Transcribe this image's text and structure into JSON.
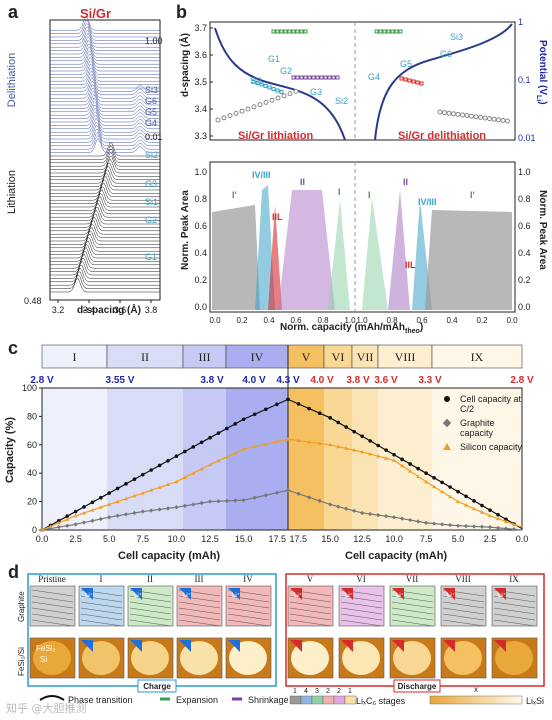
{
  "panel_a": {
    "letter": "a",
    "title": "Si/Gr",
    "side_top": "Delithiation",
    "side_bottom": "Lithiation",
    "labels_right": [
      {
        "text": "1.00",
        "color": "#222"
      },
      {
        "text": "Si3",
        "color": "#4a5ba8"
      },
      {
        "text": "G6",
        "color": "#4a5ba8"
      },
      {
        "text": "G5",
        "color": "#4a5ba8"
      },
      {
        "text": "G4",
        "color": "#4a5ba8"
      },
      {
        "text": "0.01",
        "color": "#222"
      },
      {
        "text": "Si2",
        "color": "#3aa3c8"
      },
      {
        "text": "G3",
        "color": "#3aa3c8"
      },
      {
        "text": "Si1",
        "color": "#3aa3c8"
      },
      {
        "text": "G2",
        "color": "#3aa3c8"
      },
      {
        "text": "G1",
        "color": "#3aa3c8"
      },
      {
        "text": "0.48",
        "color": "#222"
      }
    ],
    "xticks": [
      "3.2",
      "3.4",
      "3.6",
      "3.8"
    ],
    "xlabel": "d-spacing (Å)"
  },
  "panel_b": {
    "letter": "b",
    "top_left_ylabel": "d-spacing (Å)",
    "top_right_ylabel": "Potential (V",
    "top_right_ylabel_sub": "Li",
    "top_right_ylabel_end": ")",
    "yticks_left": [
      "3.7",
      "3.6",
      "3.5",
      "3.4",
      "3.3"
    ],
    "yticks_right": [
      "1",
      "0.1",
      "0.01"
    ],
    "lith_title": "Si/Gr lithiation",
    "delith_title": "Si/Gr delithiation",
    "top_annotations": [
      "G1",
      "G2",
      "Si1",
      "G3",
      "Si2",
      "G4",
      "G5",
      "G6",
      "Si3"
    ],
    "bottom_ylabel": "Norm. Peak Area",
    "bottom_yticks": [
      "1.0",
      "0.8",
      "0.6",
      "0.4",
      "0.2",
      "0.0"
    ],
    "bottom_annotations_left": [
      "I'",
      "IV/III",
      "IIL",
      "II",
      "I"
    ],
    "bottom_annotations_right": [
      "I",
      "II",
      "IV/III",
      "IIL",
      "I'"
    ],
    "xticks_left": [
      "0.0",
      "0.2",
      "0.4",
      "0.6",
      "0.8",
      "1.0"
    ],
    "xticks_right": [
      "1.0",
      "0.8",
      "0.6",
      "0.4",
      "0.2",
      "0.0"
    ],
    "xlabel": "Norm. capacity (mAh/mAh",
    "xlabel_sub": "theo",
    "xlabel_end": ")"
  },
  "panel_c": {
    "letter": "c",
    "stages": [
      "I",
      "II",
      "III",
      "IV",
      "V",
      "VI",
      "VII",
      "VIII",
      "IX"
    ],
    "voltages_charge": [
      "2.8 V",
      "3.55 V",
      "3.8 V",
      "4.0 V",
      "4.3 V"
    ],
    "voltages_discharge": [
      "4.0 V",
      "3.8 V",
      "3.6 V",
      "3.3 V",
      "2.8 V"
    ],
    "ylabel": "Capacity (%)",
    "xlabel": "Cell capacity (mAh)",
    "legend": [
      "Cell capacity at C/2",
      "Graphite capacity",
      "Silicon capacity"
    ],
    "colors": {
      "charge": "#1f2aa8",
      "discharge": "#d62b2b",
      "cell": "#111111",
      "graphite": "#777777",
      "silicon": "#f0a020"
    }
  },
  "chart_data": {
    "type": "line",
    "title": "",
    "xlabel": "Cell capacity (mAh)",
    "ylabel": "Capacity (%)",
    "ylim": [
      0,
      100
    ],
    "xticks_charge": [
      "0.0",
      "2.5",
      "5.0",
      "7.5",
      "10.0",
      "12.5",
      "15.0",
      "17.5"
    ],
    "xticks_discharge": [
      "17.5",
      "15.0",
      "12.5",
      "10.0",
      "7.5",
      "5.0",
      "2.5",
      "0.0"
    ],
    "yticks": [
      "0",
      "20",
      "40",
      "60",
      "80",
      "100"
    ],
    "x": [
      0,
      2.5,
      5.0,
      7.5,
      10.0,
      12.5,
      15.0,
      18.3,
      21.6,
      24.1,
      26.6,
      29.1,
      31.6,
      34.1,
      36.6
    ],
    "series": [
      {
        "name": "Cell capacity at C/2",
        "values": [
          0,
          13,
          26,
          39,
          52,
          65,
          78,
          92,
          79,
          66,
          53,
          40,
          27,
          14,
          1
        ]
      },
      {
        "name": "Graphite capacity",
        "values": [
          0,
          4,
          9,
          13,
          16,
          20,
          21,
          28,
          18,
          12,
          9,
          5,
          3,
          2,
          0
        ]
      },
      {
        "name": "Silicon capacity",
        "values": [
          0,
          10,
          18,
          26,
          34,
          46,
          57,
          64,
          60,
          55,
          49,
          34,
          20,
          10,
          2
        ]
      }
    ],
    "grid": false,
    "legend_position": "top-right"
  },
  "panel_d": {
    "letter": "d",
    "row_labels": [
      "Graphite",
      "FeSi₂/Si"
    ],
    "stages": [
      "Pristine",
      "I",
      "II",
      "III",
      "IV",
      "V",
      "VI",
      "VII",
      "VIII",
      "IX"
    ],
    "ion": "Li⁺",
    "fesi_label": "FeSi₂",
    "si_label": "Si",
    "charge": "Charge",
    "discharge": "Discharge",
    "legend_phase": "Phase transition",
    "legend_expansion": "Expansion",
    "legend_shrinkage": "Shrinkage",
    "stage_numbers": [
      "1",
      "4",
      "3",
      "2",
      "2",
      "1"
    ],
    "lic_label": "LiₓC₆ stages",
    "x_label": "x",
    "lisi_label": "LiₓSi"
  },
  "watermark": "知乎 @大胆推测"
}
